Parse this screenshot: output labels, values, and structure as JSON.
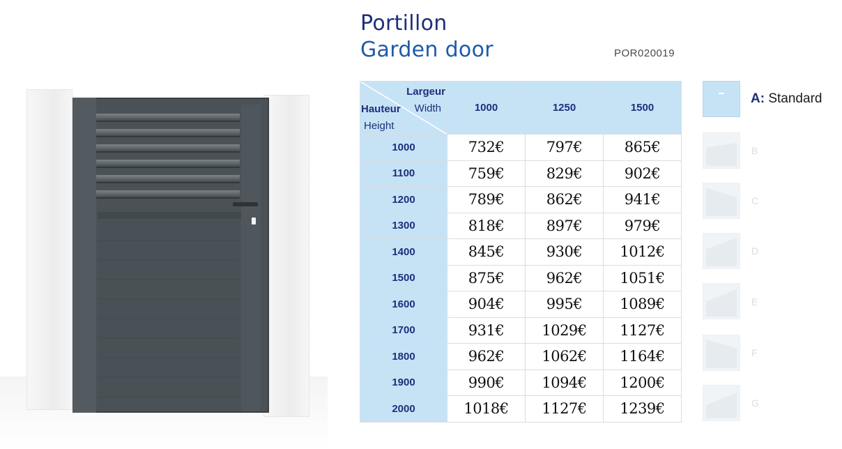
{
  "title_fr": "Portillon",
  "title_en": "Garden door",
  "reference": "POR020019",
  "table": {
    "header_largeur": "Largeur",
    "header_width": "Width",
    "header_hauteur": "Hauteur",
    "header_height": "Height",
    "widths": [
      "1000",
      "1250",
      "1500"
    ],
    "rows": [
      {
        "height": "1000",
        "prices": [
          "732€",
          "797€",
          "865€"
        ]
      },
      {
        "height": "1100",
        "prices": [
          "759€",
          "829€",
          "902€"
        ]
      },
      {
        "height": "1200",
        "prices": [
          "789€",
          "862€",
          "941€"
        ]
      },
      {
        "height": "1300",
        "prices": [
          "818€",
          "897€",
          "979€"
        ]
      },
      {
        "height": "1400",
        "prices": [
          "845€",
          "930€",
          "1012€"
        ]
      },
      {
        "height": "1500",
        "prices": [
          "875€",
          "962€",
          "1051€"
        ]
      },
      {
        "height": "1600",
        "prices": [
          "904€",
          "995€",
          "1089€"
        ]
      },
      {
        "height": "1700",
        "prices": [
          "931€",
          "1029€",
          "1127€"
        ]
      },
      {
        "height": "1800",
        "prices": [
          "962€",
          "1062€",
          "1164€"
        ]
      },
      {
        "height": "1900",
        "prices": [
          "990€",
          "1094€",
          "1200€"
        ]
      },
      {
        "height": "2000",
        "prices": [
          "1018€",
          "1127€",
          "1239€"
        ]
      }
    ]
  },
  "options": {
    "a_letter": "A:",
    "a_name": "Standard",
    "faded_letters": [
      "B",
      "C",
      "D",
      "E",
      "F",
      "G"
    ]
  },
  "colors": {
    "header_fill": "#c6e3f6",
    "navy_text": "#1f2e7a",
    "gate_grey": "#4b5257"
  }
}
